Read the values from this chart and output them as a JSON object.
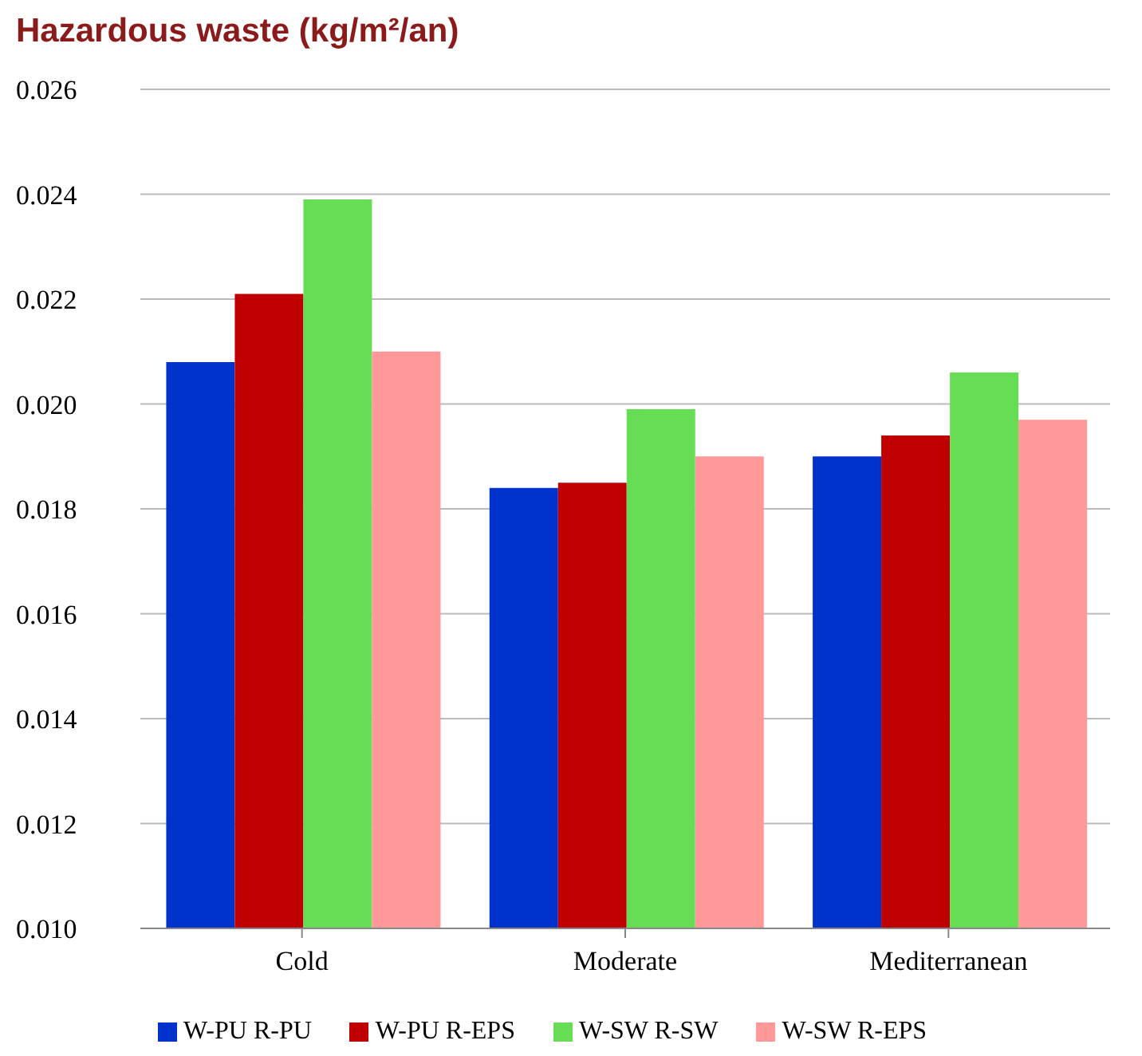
{
  "chart_data": {
    "type": "bar",
    "title": "Hazardous waste (kg/m²/an)",
    "categories": [
      "Cold",
      "Moderate",
      "Mediterranean"
    ],
    "series": [
      {
        "name": "W-PU R-PU",
        "color": "#0033cc",
        "values": [
          0.0208,
          0.0184,
          0.019
        ]
      },
      {
        "name": "W-PU R-EPS",
        "color": "#c00000",
        "values": [
          0.0221,
          0.0185,
          0.0194
        ]
      },
      {
        "name": "W-SW R-SW",
        "color": "#66dd55",
        "values": [
          0.0239,
          0.0199,
          0.0206
        ]
      },
      {
        "name": "W-SW R-EPS",
        "color": "#ff9999",
        "values": [
          0.021,
          0.019,
          0.0197
        ]
      }
    ],
    "ylim": [
      0.01,
      0.026
    ],
    "yticks": [
      {
        "value": 0.01,
        "label": "0.010"
      },
      0.012,
      0.014,
      0.016,
      0.018,
      {
        "value": 0.02,
        "label": "0.020"
      },
      0.022,
      0.024,
      0.026
    ],
    "grid": "y",
    "legend": "bottom"
  }
}
